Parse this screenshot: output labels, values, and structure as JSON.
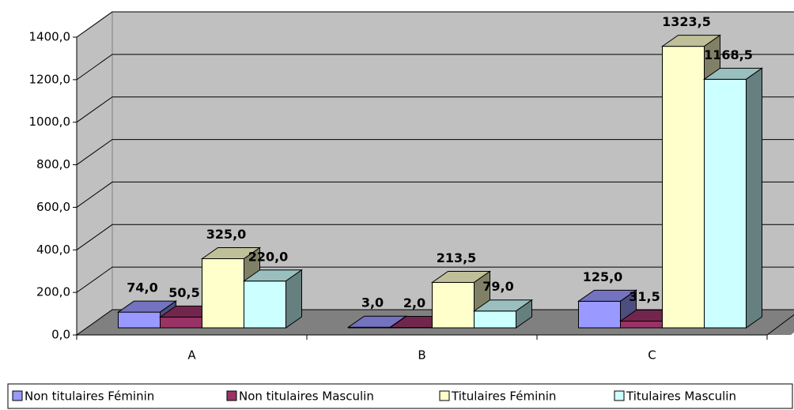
{
  "chart_data": {
    "type": "bar3d",
    "categories": [
      "A",
      "B",
      "C"
    ],
    "series": [
      {
        "name": "Non titulaires Féminin",
        "color": "#9999ff",
        "values": [
          74,
          3,
          125
        ],
        "value_labels": [
          "74,0",
          "3,0",
          "125,0"
        ]
      },
      {
        "name": "Non titulaires Masculin",
        "color": "#993366",
        "values": [
          50.5,
          2,
          31.5
        ],
        "value_labels": [
          "50,5",
          "2,0",
          "31,5"
        ]
      },
      {
        "name": "Titulaires Féminin",
        "color": "#ffffcc",
        "values": [
          325,
          213.5,
          1323.5
        ],
        "value_labels": [
          "325,0",
          "213,5",
          "1323,5"
        ]
      },
      {
        "name": "Titulaires Masculin",
        "color": "#ccffff",
        "values": [
          220,
          79,
          1168.5
        ],
        "value_labels": [
          "220,0",
          "79,0",
          "1168,5"
        ]
      }
    ],
    "ylim": [
      0,
      1400
    ],
    "yticks": [
      {
        "value": 0,
        "label": "0,0"
      },
      {
        "value": 200,
        "label": "200,0"
      },
      {
        "value": 400,
        "label": "400,0"
      },
      {
        "value": 600,
        "label": "600,0"
      },
      {
        "value": 800,
        "label": "800,0"
      },
      {
        "value": 1000,
        "label": "1000,0"
      },
      {
        "value": 1200,
        "label": "1200,0"
      },
      {
        "value": 1400,
        "label": "1400,0"
      }
    ],
    "grid": true,
    "legend": "bottom"
  }
}
